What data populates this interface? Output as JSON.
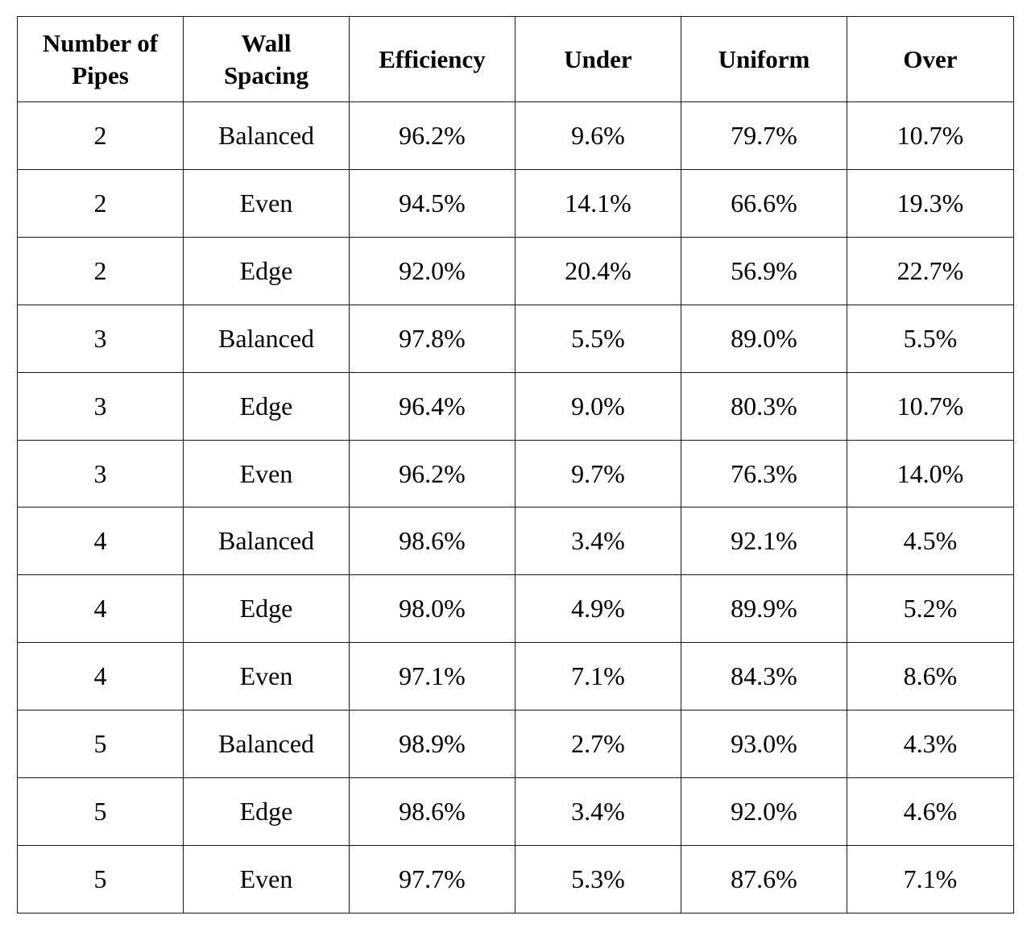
{
  "table": {
    "headers": [
      "Number of Pipes",
      "Wall Spacing",
      "Efficiency",
      "Under",
      "Uniform",
      "Over"
    ],
    "header_lines": {
      "pipes": [
        "Number of",
        "Pipes"
      ],
      "spacing": [
        "Wall",
        "Spacing"
      ]
    },
    "rows": [
      [
        "2",
        "Balanced",
        "96.2%",
        "9.6%",
        "79.7%",
        "10.7%"
      ],
      [
        "2",
        "Even",
        "94.5%",
        "14.1%",
        "66.6%",
        "19.3%"
      ],
      [
        "2",
        "Edge",
        "92.0%",
        "20.4%",
        "56.9%",
        "22.7%"
      ],
      [
        "3",
        "Balanced",
        "97.8%",
        "5.5%",
        "89.0%",
        "5.5%"
      ],
      [
        "3",
        "Edge",
        "96.4%",
        "9.0%",
        "80.3%",
        "10.7%"
      ],
      [
        "3",
        "Even",
        "96.2%",
        "9.7%",
        "76.3%",
        "14.0%"
      ],
      [
        "4",
        "Balanced",
        "98.6%",
        "3.4%",
        "92.1%",
        "4.5%"
      ],
      [
        "4",
        "Edge",
        "98.0%",
        "4.9%",
        "89.9%",
        "5.2%"
      ],
      [
        "4",
        "Even",
        "97.1%",
        "7.1%",
        "84.3%",
        "8.6%"
      ],
      [
        "5",
        "Balanced",
        "98.9%",
        "2.7%",
        "93.0%",
        "4.3%"
      ],
      [
        "5",
        "Edge",
        "98.6%",
        "3.4%",
        "92.0%",
        "4.6%"
      ],
      [
        "5",
        "Even",
        "97.7%",
        "5.3%",
        "87.6%",
        "7.1%"
      ]
    ]
  }
}
